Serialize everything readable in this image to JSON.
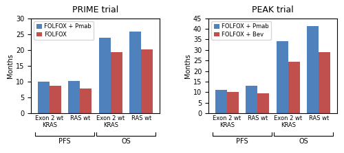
{
  "chart_data": [
    {
      "type": "bar",
      "title": "PRIME trial",
      "ylabel": "Months",
      "categories": [
        "Exon 2 wt\nKRAS",
        "RAS wt",
        "Exon 2 wt\nKRAS",
        "RAS wt"
      ],
      "series": [
        {
          "name": "FOLFOX + Pmab",
          "color": "#4F81BD",
          "values": [
            10.0,
            10.1,
            23.9,
            25.8
          ]
        },
        {
          "name": "FOLFOX",
          "color": "#C0504D",
          "values": [
            8.6,
            7.9,
            19.4,
            20.2
          ]
        }
      ],
      "ylim": [
        0,
        30
      ],
      "yticks": [
        0,
        5,
        10,
        15,
        20,
        25,
        30
      ],
      "legend": "upper left",
      "grid": false,
      "annotations": [
        "PFS",
        "OS"
      ]
    },
    {
      "type": "bar",
      "title": "PEAK trial",
      "ylabel": "Months",
      "categories": [
        "Exon 2 wt\nKRAS",
        "RAS wt",
        "Exon 2 wt\nKRAS",
        "RAS wt"
      ],
      "series": [
        {
          "name": "FOLFOX + Pmab",
          "color": "#4F81BD",
          "values": [
            11.0,
            13.0,
            34.2,
            41.3
          ]
        },
        {
          "name": "FOLFOX + Bev",
          "color": "#C0504D",
          "values": [
            10.1,
            9.5,
            24.3,
            28.9
          ]
        }
      ],
      "ylim": [
        0,
        45
      ],
      "yticks": [
        0,
        5,
        10,
        15,
        20,
        25,
        30,
        35,
        40,
        45
      ],
      "legend": "upper left",
      "grid": false,
      "annotations": [
        "PFS",
        "OS"
      ]
    }
  ]
}
